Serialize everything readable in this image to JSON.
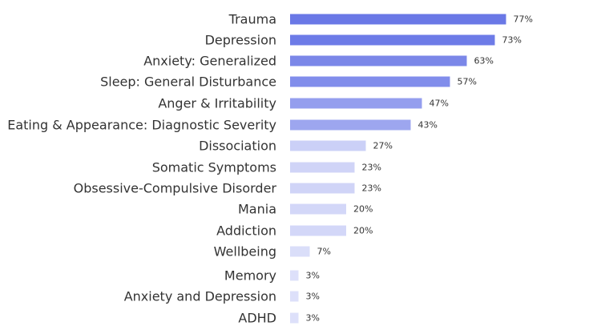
{
  "chart_data": {
    "type": "bar",
    "orientation": "horizontal",
    "title": "",
    "xlabel": "",
    "ylabel": "",
    "grid": false,
    "legend": "none",
    "xlim": [
      0,
      100
    ],
    "value_suffix": "%",
    "categories": [
      "Trauma",
      "Depression",
      "Anxiety: Generalized",
      "Sleep: General Disturbance",
      "Anger & Irritability",
      "Eating & Appearance: Diagnostic Severity",
      "Dissociation",
      "Somatic Symptoms",
      "Obsessive-Compulsive Disorder",
      "Mania",
      "Addiction",
      "Wellbeing",
      "Memory",
      "Anxiety and Depression",
      "ADHD"
    ],
    "values": [
      77,
      73,
      63,
      57,
      47,
      43,
      27,
      23,
      23,
      20,
      20,
      7,
      3,
      3,
      3
    ],
    "value_labels": [
      "77%",
      "73%",
      "63%",
      "57%",
      "47%",
      "43%",
      "27%",
      "23%",
      "23%",
      "20%",
      "20%",
      "7%",
      "3%",
      "3%",
      "3%"
    ],
    "colors": [
      "#6a78e6",
      "#6d7be7",
      "#7b87e8",
      "#818deb",
      "#949eee",
      "#9da6ef",
      "#cbd0f7",
      "#d0d4f7",
      "#d0d4f7",
      "#d3d7f8",
      "#d3d7f8",
      "#dadef9",
      "#dde0fa",
      "#dde0fa",
      "#dde0fa"
    ]
  }
}
